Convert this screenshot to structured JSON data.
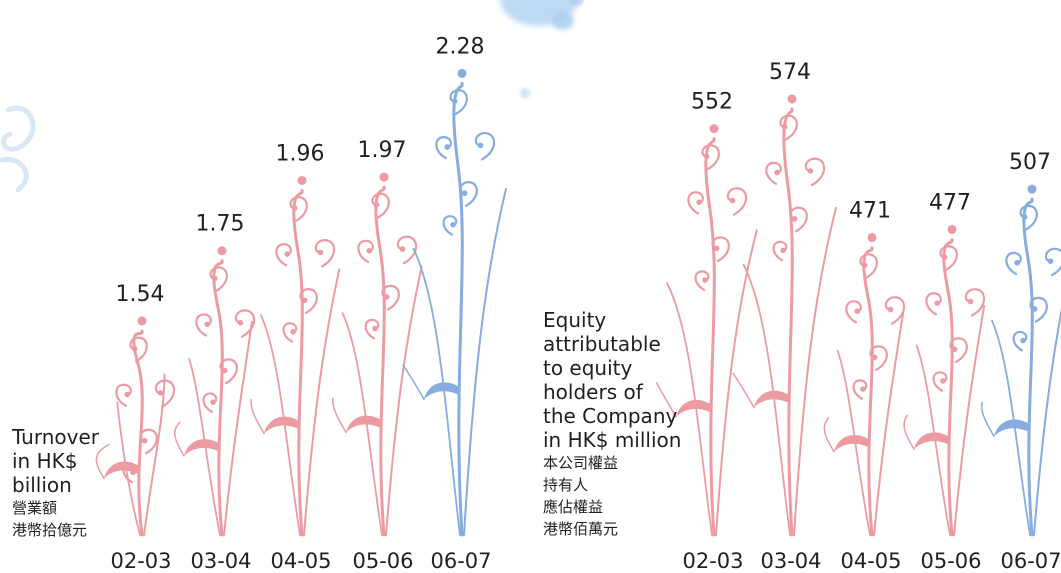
{
  "colors": {
    "past": "#ec9ba3",
    "current": "#86ace0",
    "text": "#231f20",
    "bubble": "#a9cdee"
  },
  "chart_data": [
    {
      "type": "bar",
      "style": "decorative-floral-stems",
      "ylabel": [
        "Turnover",
        "in HK$",
        "billion"
      ],
      "ylabel_zh": [
        "營業額",
        "港幣拾億元"
      ],
      "categories": [
        "02-03",
        "03-04",
        "04-05",
        "05-06",
        "06-07"
      ],
      "values": [
        1.54,
        1.75,
        1.96,
        1.97,
        2.28
      ],
      "value_labels": [
        "1.54",
        "1.75",
        "1.96",
        "1.97",
        "2.28"
      ],
      "highlight_index": 4
    },
    {
      "type": "bar",
      "style": "decorative-floral-stems",
      "ylabel": [
        "Equity",
        "attributable",
        "to equity",
        "holders of",
        "the Company",
        "in HK$ million"
      ],
      "ylabel_zh": [
        "本公司權益",
        "持有人",
        "應佔權益",
        "港幣佰萬元"
      ],
      "categories": [
        "02-03",
        "03-04",
        "04-05",
        "05-06",
        "06-07"
      ],
      "values": [
        552,
        574,
        471,
        477,
        507
      ],
      "value_labels": [
        "552",
        "574",
        "471",
        "477",
        "507"
      ],
      "highlight_index": 4
    }
  ]
}
